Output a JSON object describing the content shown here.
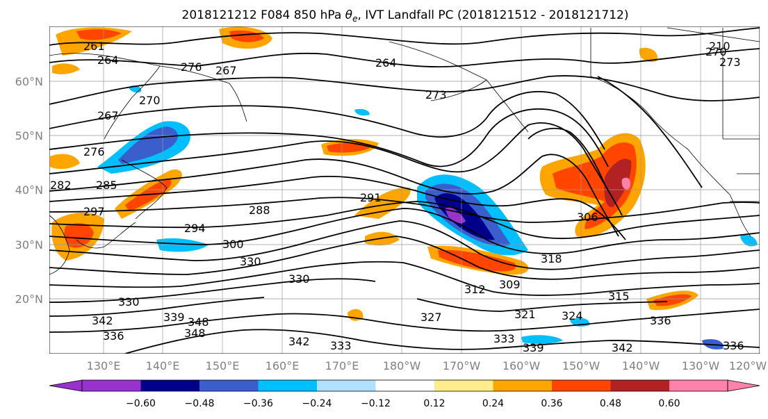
{
  "title": "2018121212 F084 850 hPa θe, IVT Landfall PC (2018121512 - 2018121712)",
  "title_parts": {
    "prefix": "2018121212 F084 850 hPa ",
    "theta": "θ",
    "sub": "e",
    "suffix": ", IVT Landfall PC (2018121512 - 2018121712)"
  },
  "lon_ticks": [
    "130°E",
    "140°E",
    "150°E",
    "160°E",
    "170°E",
    "180°W",
    "170°W",
    "160°W",
    "150°W",
    "140°W",
    "130°W",
    "120°W"
  ],
  "lat_ticks": [
    "60°N",
    "50°N",
    "40°N",
    "30°N",
    "20°N"
  ],
  "colorbar": {
    "colors": [
      "#9932cc",
      "#00008b",
      "#3a5fcd",
      "#00bfff",
      "#b0e2ff",
      "#ffffff",
      "#ffec8b",
      "#ffa500",
      "#ff4500",
      "#b22222",
      "#ff82ab"
    ],
    "tick_labels": [
      "−0.60",
      "−0.48",
      "−0.36",
      "−0.24",
      "−0.12",
      "0.12",
      "0.24",
      "0.36",
      "0.48",
      "0.60"
    ]
  },
  "contour_labels": [
    "261",
    "264",
    "267",
    "264",
    "276",
    "270",
    "273",
    "210",
    "267",
    "270",
    "273",
    "276",
    "282",
    "285",
    "288",
    "291",
    "294",
    "297",
    "300",
    "306",
    "309",
    "312",
    "315",
    "318",
    "321",
    "324",
    "327",
    "330",
    "330",
    "330",
    "333",
    "333",
    "336",
    "336",
    "336",
    "339",
    "339",
    "342",
    "342",
    "342",
    "348",
    "348"
  ]
}
